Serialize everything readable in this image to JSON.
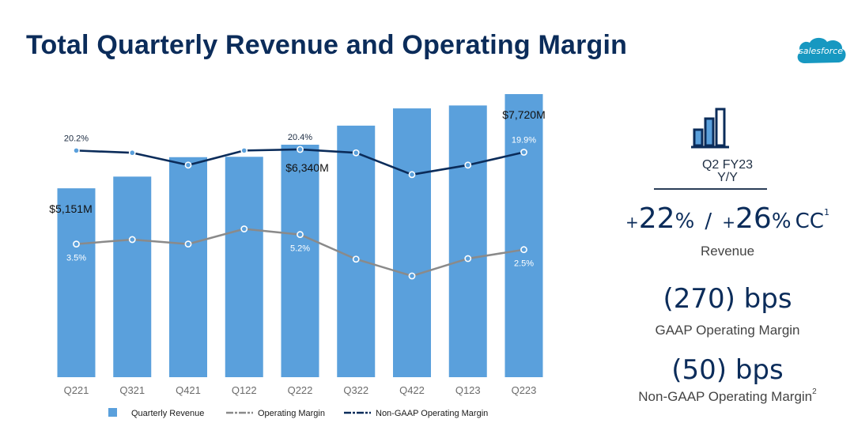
{
  "title": "Total Quarterly Revenue and Operating Margin",
  "logo_text": "salesforce",
  "colors": {
    "bar": "#5aa0dc",
    "gaap_line": "#8a8a8a",
    "non_gaap_line": "#0b2c5a",
    "title": "#0b2c5a"
  },
  "chart_data": {
    "type": "bar",
    "categories": [
      "Q221",
      "Q321",
      "Q421",
      "Q122",
      "Q222",
      "Q322",
      "Q422",
      "Q123",
      "Q223"
    ],
    "series": [
      {
        "name": "Quarterly Revenue",
        "type": "bar",
        "unit": "$M",
        "values": [
          5151,
          5470,
          6000,
          6010,
          6340,
          6860,
          7330,
          7410,
          7720
        ]
      },
      {
        "name": "Operating Margin",
        "type": "line",
        "unit": "%",
        "values": [
          3.5,
          4.3,
          3.5,
          6.2,
          5.2,
          0.8,
          -2.2,
          0.9,
          2.5
        ]
      },
      {
        "name": "Non-GAAP Operating Margin",
        "type": "line",
        "unit": "%",
        "values": [
          20.2,
          19.8,
          17.6,
          20.2,
          20.4,
          19.8,
          15.9,
          17.6,
          19.9
        ]
      }
    ],
    "bar_labels": [
      {
        "index": 0,
        "text": "$5,151M"
      },
      {
        "index": 4,
        "text": "$6,340M"
      },
      {
        "index": 8,
        "text": "$7,720M"
      }
    ],
    "gaap_labels": [
      {
        "index": 0,
        "text": "3.5%"
      },
      {
        "index": 4,
        "text": "5.2%"
      },
      {
        "index": 8,
        "text": "2.5%"
      }
    ],
    "non_gaap_labels": [
      {
        "index": 0,
        "text": "20.2%"
      },
      {
        "index": 4,
        "text": "20.4%"
      },
      {
        "index": 8,
        "text": "19.9%"
      }
    ],
    "legend": [
      "Quarterly Revenue",
      "Operating Margin",
      "Non-GAAP Operating Margin"
    ],
    "legend_position": "bottom",
    "grid": false
  },
  "panel": {
    "period_line1": "Q2 FY23",
    "period_line2": "Y/Y",
    "growth": {
      "plus1": "+",
      "value1": "22",
      "pct1": "%",
      "slash": "/",
      "plus2": "+",
      "value2": "26",
      "pct2": "%",
      "cc": "CC",
      "footnote": "1"
    },
    "revenue_label": "Revenue",
    "gaap_value": "(270) bps",
    "gaap_label": "GAAP Operating Margin",
    "non_gaap_value": "(50) bps",
    "non_gaap_label": "Non-GAAP Operating Margin",
    "non_gaap_footnote": "2"
  }
}
